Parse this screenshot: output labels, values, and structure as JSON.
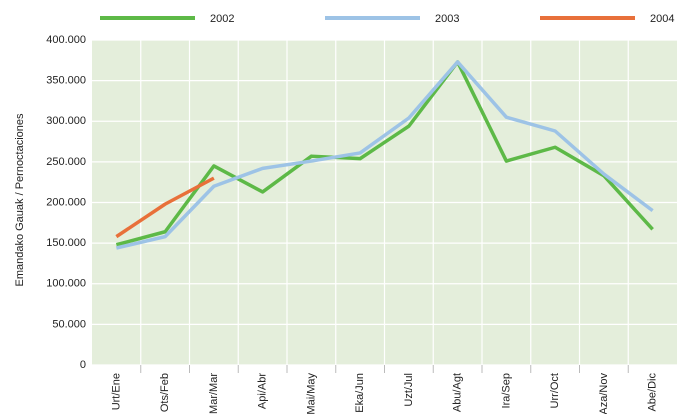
{
  "chart_data": {
    "type": "line",
    "y_label": "Emandako Gauak / Pernoctaciones",
    "categories": [
      "Urt/Ene",
      "Ots/Feb",
      "Mar/Mar",
      "Api/Abr",
      "Mai/May",
      "Eka/Jun",
      "Uzt/Jul",
      "Abu/Agt",
      "Ira/Sep",
      "Urr/Oct",
      "Aza/Nov",
      "Abe/Dic"
    ],
    "series": [
      {
        "name": "2002",
        "color": "#5db947",
        "values": [
          148000,
          164000,
          245000,
          213000,
          257000,
          254000,
          294000,
          373000,
          251000,
          268000,
          233000,
          167000
        ]
      },
      {
        "name": "2003",
        "color": "#9dc3e6",
        "values": [
          144000,
          158000,
          220000,
          242000,
          251000,
          261000,
          304000,
          373000,
          305000,
          288000,
          235000,
          190000
        ]
      },
      {
        "name": "2004",
        "color": "#e8703a",
        "values": [
          158000,
          198000,
          230000,
          null,
          null,
          null,
          null,
          null,
          null,
          null,
          null,
          null
        ]
      }
    ],
    "ylim": [
      0,
      400000
    ],
    "yticks": [
      0,
      {
        "value": 50000,
        "label": "50.000"
      },
      {
        "value": 100000,
        "label": "100.000"
      },
      {
        "value": 150000,
        "label": "150.000"
      },
      {
        "value": 200000,
        "label": "200.000"
      },
      {
        "value": 250000,
        "label": "250.000"
      },
      {
        "value": 300000,
        "label": "300.000"
      },
      {
        "value": 350000,
        "label": "350.000"
      },
      {
        "value": 400000,
        "label": "400.000"
      }
    ],
    "grid": true,
    "background": "#e4eedb"
  }
}
